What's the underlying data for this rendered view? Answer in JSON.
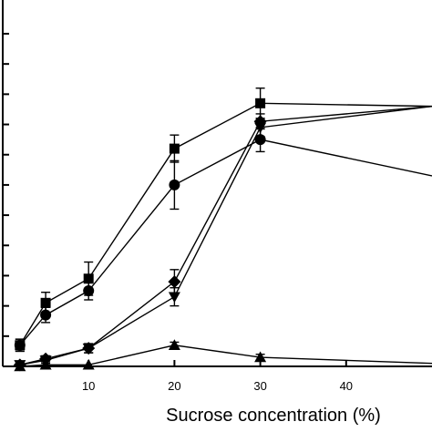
{
  "chart_data": {
    "type": "line",
    "title": "",
    "xlabel": "Sucrose concentration (%)",
    "ylabel": "",
    "xlim": [
      0,
      50
    ],
    "ylim": [
      0,
      11
    ],
    "xticks": [
      10,
      20,
      30,
      40
    ],
    "yticks": [
      1,
      2,
      3,
      4,
      5,
      6,
      7,
      8,
      9,
      10,
      11
    ],
    "grid": false,
    "legend": "none",
    "color": "#000000",
    "series": [
      {
        "marker": "square",
        "x": [
          2,
          5,
          10,
          20,
          30,
          50
        ],
        "y": [
          0.7,
          2.1,
          2.9,
          7.2,
          8.7,
          8.6
        ],
        "err": [
          0.2,
          0.35,
          0.55,
          0.45,
          0.5,
          0
        ]
      },
      {
        "marker": "circle",
        "x": [
          2,
          5,
          10,
          20,
          30,
          50
        ],
        "y": [
          0.7,
          1.7,
          2.5,
          6.0,
          7.5,
          6.3
        ],
        "err": [
          0.2,
          0.25,
          0.3,
          0.8,
          0.4,
          0
        ]
      },
      {
        "marker": "diamond",
        "x": [
          2,
          5,
          10,
          20,
          30,
          50
        ],
        "y": [
          0.05,
          0.25,
          0.6,
          2.8,
          8.1,
          8.6
        ],
        "err": [
          0.05,
          0.1,
          0.15,
          0.4,
          0.25,
          0
        ]
      },
      {
        "marker": "triangle-down",
        "x": [
          2,
          5,
          10,
          20,
          30,
          50
        ],
        "y": [
          0.05,
          0.2,
          0.6,
          2.3,
          7.9,
          8.6
        ],
        "err": [
          0.05,
          0.1,
          0.15,
          0.3,
          0.3,
          0
        ]
      },
      {
        "marker": "triangle-up",
        "x": [
          2,
          5,
          10,
          20,
          30,
          50
        ],
        "y": [
          0.0,
          0.05,
          0.05,
          0.7,
          0.3,
          0.1
        ],
        "err": [
          0,
          0,
          0,
          0.1,
          0.1,
          0
        ]
      }
    ]
  }
}
